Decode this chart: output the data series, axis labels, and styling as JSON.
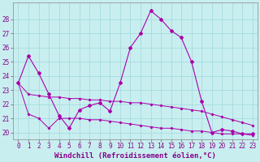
{
  "xlabel": "Windchill (Refroidissement éolien,°C)",
  "background_color": "#c8eef0",
  "grid_color": "#a0d8dc",
  "line_color": "#aa00aa",
  "x": [
    0,
    1,
    2,
    3,
    4,
    5,
    6,
    7,
    8,
    9,
    10,
    11,
    12,
    13,
    14,
    15,
    16,
    17,
    18,
    19,
    20,
    21,
    22,
    23
  ],
  "line_main": [
    23.5,
    25.4,
    24.2,
    22.7,
    21.2,
    20.3,
    21.6,
    21.9,
    22.1,
    21.5,
    23.5,
    26.0,
    27.0,
    28.6,
    28.0,
    27.2,
    26.7,
    25.0,
    22.2,
    20.0,
    20.2,
    20.1,
    19.9,
    19.9
  ],
  "line_trend1": [
    23.5,
    22.7,
    22.6,
    22.5,
    22.5,
    22.4,
    22.4,
    22.3,
    22.3,
    22.2,
    22.2,
    22.1,
    22.1,
    22.0,
    21.9,
    21.8,
    21.7,
    21.6,
    21.5,
    21.3,
    21.1,
    20.9,
    20.7,
    20.5
  ],
  "line_trend2": [
    23.5,
    21.3,
    21.0,
    20.3,
    21.0,
    21.0,
    21.0,
    20.9,
    20.9,
    20.8,
    20.7,
    20.6,
    20.5,
    20.4,
    20.3,
    20.3,
    20.2,
    20.1,
    20.1,
    20.0,
    19.9,
    19.9,
    19.9,
    19.8
  ],
  "ylim": [
    19.5,
    29.2
  ],
  "xlim": [
    -0.5,
    23.5
  ],
  "yticks": [
    20,
    21,
    22,
    23,
    24,
    25,
    26,
    27,
    28
  ],
  "xticks": [
    0,
    1,
    2,
    3,
    4,
    5,
    6,
    7,
    8,
    9,
    10,
    11,
    12,
    13,
    14,
    15,
    16,
    17,
    18,
    19,
    20,
    21,
    22,
    23
  ],
  "tick_color": "#880088",
  "fontsize_tick": 5.5,
  "fontsize_xlabel": 6.5
}
